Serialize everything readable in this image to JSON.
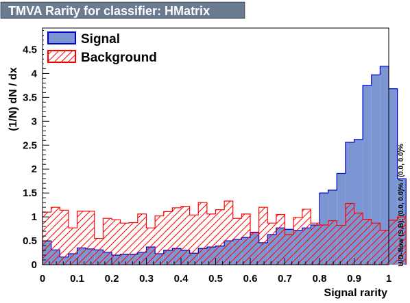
{
  "chart_data": {
    "type": "histogram",
    "title": "TMVA Rarity for classifier: HMatrix",
    "xlabel": "Signal rarity",
    "ylabel": "(1/N) dN / dx",
    "side_label": "U/O-flow (S,B): (0.0, 0.0)% / (0.0, 0.0)%",
    "xlim": [
      0,
      1
    ],
    "ylim": [
      0,
      4.95
    ],
    "xticks": [
      "0",
      "0.1",
      "0.2",
      "0.3",
      "0.4",
      "0.5",
      "0.6",
      "0.7",
      "0.8",
      "0.9",
      "1"
    ],
    "yticks": [
      "0",
      "0.5",
      "1",
      "1.5",
      "2",
      "2.5",
      "3",
      "3.5",
      "4",
      "4.5"
    ],
    "bin_edges_start": 0,
    "bin_width": 0.025,
    "legend_position": "top-left",
    "series": [
      {
        "name": "Signal",
        "fill": "#7b96d2",
        "line": "#0000cc",
        "style": "solid",
        "values": [
          0.5,
          0.31,
          0.16,
          0.23,
          0.35,
          0.33,
          0.31,
          0.26,
          0.2,
          0.22,
          0.22,
          0.26,
          0.37,
          0.23,
          0.3,
          0.34,
          0.3,
          0.24,
          0.34,
          0.37,
          0.39,
          0.5,
          0.53,
          0.57,
          0.68,
          0.46,
          0.63,
          0.77,
          0.74,
          0.72,
          0.77,
          0.83,
          1.5,
          1.56,
          1.91,
          2.56,
          2.62,
          3.75,
          3.97,
          4.15,
          3.68,
          1.8
        ]
      },
      {
        "name": "Background",
        "fill": "#ff0000",
        "line": "#ff0000",
        "style": "hatched",
        "values": [
          1.1,
          1.2,
          1.14,
          0.77,
          1.12,
          1.12,
          0.55,
          0.97,
          0.94,
          0.87,
          0.88,
          1.06,
          0.77,
          1.02,
          1.11,
          1.19,
          1.22,
          1.04,
          1.3,
          1.06,
          1.15,
          1.33,
          0.97,
          1.06,
          0.67,
          1.2,
          0.87,
          1.05,
          0.63,
          0.99,
          1.16,
          0.87,
          0.83,
          0.92,
          0.82,
          1.28,
          1.08,
          0.95,
          0.87,
          0.72,
          0.93,
          1.0
        ]
      }
    ]
  }
}
